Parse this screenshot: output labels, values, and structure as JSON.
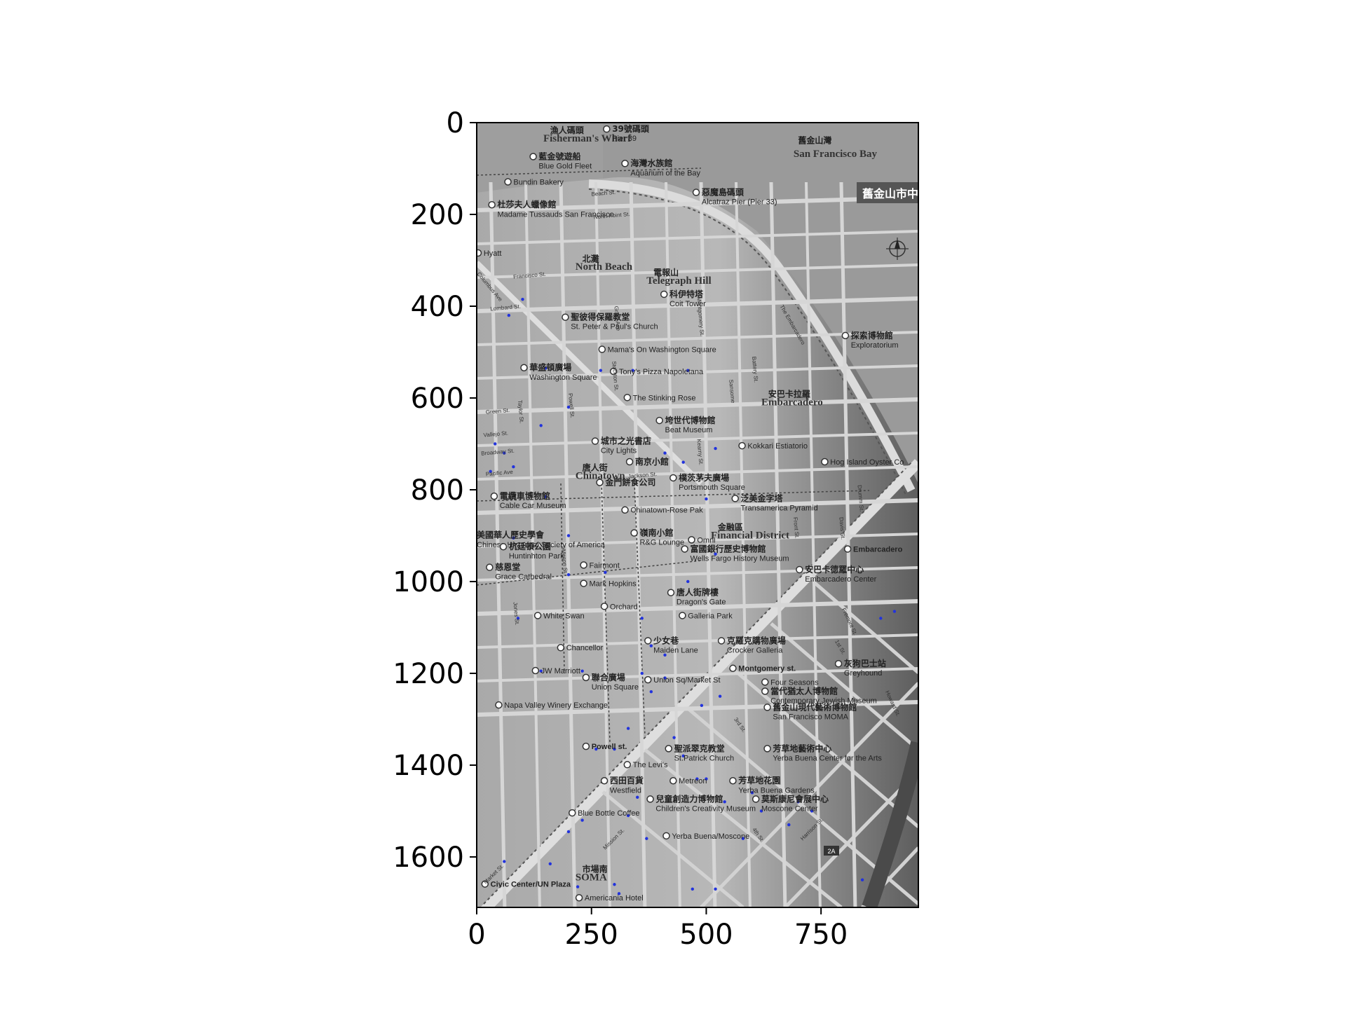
{
  "axes": {
    "x_ticks": [
      "0",
      "250",
      "500",
      "750"
    ],
    "y_ticks": [
      "0",
      "200",
      "400",
      "600",
      "800",
      "1000",
      "1200",
      "1400",
      "1600"
    ]
  },
  "map": {
    "bay_cn": "舊金山灣",
    "bay_en": "San Francisco Bay",
    "sign_cn": "舊金山市中",
    "districts": [
      {
        "cn": "漁人碼頭",
        "en": "Fisherman's Wharf"
      },
      {
        "cn": "北灘",
        "en": "North Beach"
      },
      {
        "cn": "電報山",
        "en": "Telegraph Hill"
      },
      {
        "cn": "安巴卡拉羅",
        "en": "Embarcadero"
      },
      {
        "cn": "唐人街",
        "en": "Chinatown"
      },
      {
        "cn": "金融區",
        "en": "Financial District"
      },
      {
        "cn": "市場南",
        "en": "SOMA"
      }
    ],
    "places": [
      {
        "cn": "39號碼頭",
        "en": "Pier 39"
      },
      {
        "cn": "藍金號遊船",
        "en": "Blue Gold Fleet"
      },
      {
        "cn": "海灣水族館",
        "en": "Aquarium of the Bay"
      },
      {
        "cn": "",
        "en": "Bundin Bakery"
      },
      {
        "cn": "惡魔島碼頭",
        "en": "Alcatraz Pier (Pier 33)"
      },
      {
        "cn": "杜莎夫人蠟像館",
        "en": "Madame Tussauds San Francisco"
      },
      {
        "cn": "",
        "en": "Hyatt"
      },
      {
        "cn": "科伊特塔",
        "en": "Coit Tower"
      },
      {
        "cn": "聖彼得保羅教堂",
        "en": "St. Peter & Paul's Church"
      },
      {
        "cn": "",
        "en": "Mama's On Washington Square"
      },
      {
        "cn": "探索博物館",
        "en": "Exploratorium"
      },
      {
        "cn": "華盛頓廣場",
        "en": "Washington Square"
      },
      {
        "cn": "",
        "en": "Tony's Pizza Napoletana"
      },
      {
        "cn": "",
        "en": "The Stinking Rose"
      },
      {
        "cn": "垮世代博物館",
        "en": "Beat Museum"
      },
      {
        "cn": "城市之光書店",
        "en": "City Lights"
      },
      {
        "cn": "",
        "en": "Kokkari Estiatorio"
      },
      {
        "cn": "南京小館",
        "en": ""
      },
      {
        "cn": "",
        "en": "Hog Island Oyster Co"
      },
      {
        "cn": "金門餅食公司",
        "en": ""
      },
      {
        "cn": "樸茨茅夫廣場",
        "en": "Portsmouth Square"
      },
      {
        "cn": "泛美金字塔",
        "en": "Transamerica Pyramid"
      },
      {
        "cn": "電纜車博物館",
        "en": "Cable Car Museum"
      },
      {
        "cn": "",
        "en": "Chinatown-Rose Pak"
      },
      {
        "cn": "美國華人歷史學會",
        "en": "Chinese Historical Society of America"
      },
      {
        "cn": "嶺南小館",
        "en": "R&G Lounge"
      },
      {
        "cn": "",
        "en": "Omni"
      },
      {
        "cn": "",
        "en": "Embarcadero"
      },
      {
        "cn": "杭廷頓公園",
        "en": "Huntinhton Park"
      },
      {
        "cn": "富國銀行歷史博物館",
        "en": "Wells Fargo History Museum"
      },
      {
        "cn": "慈恩堂",
        "en": "Grace Cathedral"
      },
      {
        "cn": "",
        "en": "Fairmont"
      },
      {
        "cn": "安巴卡德羅中心",
        "en": "Embarcadero Center"
      },
      {
        "cn": "",
        "en": "Mark Hopkins"
      },
      {
        "cn": "唐人街牌樓",
        "en": "Dragon's Gate"
      },
      {
        "cn": "",
        "en": "White Swan"
      },
      {
        "cn": "",
        "en": "Orchard"
      },
      {
        "cn": "",
        "en": "Galleria Park"
      },
      {
        "cn": "少女巷",
        "en": "Maiden Lane"
      },
      {
        "cn": "克羅克購物廣場",
        "en": "Crocker Galleria"
      },
      {
        "cn": "",
        "en": "Chancellor"
      },
      {
        "cn": "灰狗巴士站",
        "en": "Greyhound"
      },
      {
        "cn": "",
        "en": "JW Marriott"
      },
      {
        "cn": "",
        "en": "Montgomery st."
      },
      {
        "cn": "",
        "en": "Four Seasons"
      },
      {
        "cn": "聯合廣場",
        "en": "Union Square"
      },
      {
        "cn": "",
        "en": "Union Sq/Market St"
      },
      {
        "cn": "當代猶太人博物館",
        "en": "Contemporary Jewish Museum"
      },
      {
        "cn": "",
        "en": "Napa Valley Winery Exchange"
      },
      {
        "cn": "舊金山現代藝術博物館",
        "en": "San Francisco MOMA"
      },
      {
        "cn": "",
        "en": "Powell st."
      },
      {
        "cn": "聖派翠克教堂",
        "en": "St.Patrick Church"
      },
      {
        "cn": "芳草地藝術中心",
        "en": "Yerba Buena Center for the Arts"
      },
      {
        "cn": "",
        "en": "The Levi's"
      },
      {
        "cn": "西田百貨",
        "en": "Westfield"
      },
      {
        "cn": "",
        "en": "Metreon"
      },
      {
        "cn": "芳草地花園",
        "en": "Yerba Buena Gardens"
      },
      {
        "cn": "兒童創造力博物館",
        "en": "Children's Creativity Museum"
      },
      {
        "cn": "莫斯康尼會展中心",
        "en": "Moscone Center"
      },
      {
        "cn": "",
        "en": "Blue Bottle Coffee"
      },
      {
        "cn": "",
        "en": "Yerba Buena/Moscone"
      },
      {
        "cn": "",
        "en": "Civic Center/UN Plaza"
      },
      {
        "cn": "",
        "en": "Americania Hotel"
      }
    ],
    "streets": [
      "Beach St.",
      "North Point St.",
      "Francisco St.",
      "Columbus Ave",
      "Lombard St.",
      "Grant Ave",
      "Montgomery St.",
      "Battery St.",
      "Sansome",
      "The Embarcadero",
      "Stockton St.",
      "Powell St.",
      "Kearny St.",
      "Green St.",
      "Vallejo St.",
      "Broadway St.",
      "Pacific Ave",
      "Taylor St.",
      "Jackson St.",
      "Mason St.",
      "Jones St.",
      "Front St.",
      "Davis St.",
      "Drumm St.",
      "Fremont St.",
      "1st St.",
      "3rd St.",
      "4th St.",
      "Mission St.",
      "Market St.",
      "Harrison St.",
      "Howard St."
    ],
    "highway": "2A"
  }
}
